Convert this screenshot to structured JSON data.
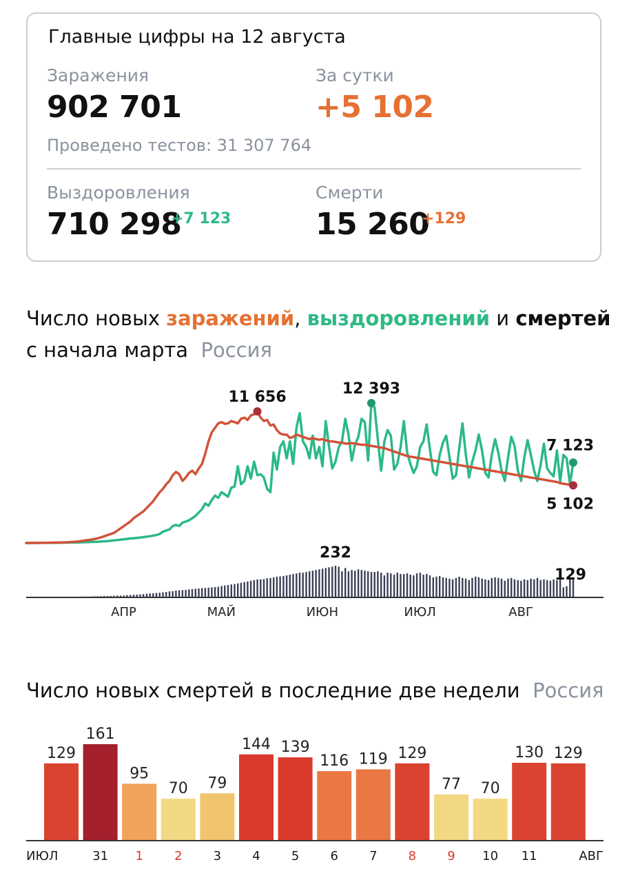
{
  "summary": {
    "title": "Главные цифры на 12 августа",
    "infections_label": "Заражения",
    "infections_value": "902 701",
    "daily_label": "За сутки",
    "daily_value": "+5 102",
    "tests_text": "Проведено тестов: 31 307 764",
    "recoveries_label": "Выздоровления",
    "recoveries_value": "710 298",
    "recoveries_delta": "+7 123",
    "deaths_label": "Смерти",
    "deaths_value": "15 260",
    "deaths_delta": "+129"
  },
  "chart1": {
    "title_part1": "Число новых ",
    "title_infections": "заражений",
    "title_comma": ", ",
    "title_recoveries": "выздоровлений",
    "title_and": " и ",
    "title_deaths": "смертей",
    "title_line2": "с начала марта",
    "region": "Россия"
  },
  "chart2": {
    "title": "Число новых смертей в последние две недели",
    "region": "Россия"
  },
  "colors": {
    "infections": "#d2523a",
    "infections_early": "#e8a456",
    "recoveries": "#2bb988",
    "recoveries_early": "#a9e0ee",
    "deaths_bars": "#3a3f55",
    "bar_dark": "#a3202c",
    "bar_red": "#d93a2b",
    "bar_orange": "#ea7845",
    "bar_light_orange": "#f0a35a",
    "bar_yellow": "#f3d883"
  },
  "chart_data": [
    {
      "type": "line",
      "x_range": [
        "2020-03-01",
        "2020-08-12"
      ],
      "months": [
        "АПР",
        "МАЙ",
        "ИЮН",
        "ИЮЛ",
        "АВГ"
      ],
      "ylim": [
        0,
        13000
      ],
      "series": [
        {
          "name": "заражений",
          "values": [
            2,
            3,
            5,
            7,
            10,
            15,
            20,
            25,
            30,
            35,
            40,
            50,
            60,
            70,
            90,
            110,
            140,
            180,
            220,
            260,
            300,
            350,
            420,
            500,
            600,
            700,
            800,
            900,
            1100,
            1300,
            1500,
            1700,
            1900,
            2200,
            2400,
            2600,
            2800,
            3100,
            3400,
            3700,
            4100,
            4500,
            4800,
            5200,
            5500,
            6000,
            6300,
            6100,
            5500,
            5800,
            6200,
            6400,
            6100,
            6600,
            7000,
            7900,
            9000,
            9800,
            10200,
            10600,
            10700,
            10550,
            10600,
            10800,
            10700,
            10600,
            11000,
            11100,
            10900,
            11300,
            11400,
            11656,
            11100,
            10800,
            10900,
            10400,
            10500,
            10000,
            9700,
            9600,
            9600,
            9300,
            9400,
            9600,
            9500,
            9400,
            9300,
            9200,
            9300,
            9200,
            9150,
            9200,
            9100,
            9000,
            9000,
            8950,
            8900,
            8900,
            8800,
            8800,
            8850,
            8800,
            8750,
            8700,
            8700,
            8650,
            8600,
            8550,
            8500,
            8450,
            8400,
            8300,
            8200,
            8100,
            8000,
            7900,
            7800,
            7700,
            7650,
            7600,
            7550,
            7500,
            7450,
            7400,
            7350,
            7300,
            7250,
            7200,
            7150,
            7100,
            7050,
            7000,
            6950,
            6900,
            6850,
            6800,
            6750,
            6700,
            6650,
            6600,
            6550,
            6500,
            6450,
            6400,
            6350,
            6300,
            6250,
            6200,
            6150,
            6100,
            6050,
            6000,
            5950,
            5900,
            5850,
            5800,
            5750,
            5700,
            5650,
            5600,
            5550,
            5500,
            5450,
            5400,
            5300,
            5250,
            5200,
            5150,
            5102
          ]
        },
        {
          "name": "выздоровлений",
          "values": [
            0,
            0,
            0,
            0,
            0,
            5,
            10,
            10,
            15,
            20,
            20,
            25,
            30,
            30,
            40,
            40,
            50,
            60,
            70,
            80,
            90,
            100,
            110,
            130,
            150,
            170,
            200,
            230,
            260,
            300,
            330,
            360,
            400,
            420,
            450,
            480,
            520,
            560,
            600,
            650,
            700,
            800,
            1000,
            1100,
            1200,
            1500,
            1600,
            1500,
            1800,
            1900,
            2000,
            2200,
            2400,
            2700,
            3000,
            3500,
            3300,
            3800,
            4200,
            4000,
            4500,
            4300,
            4100,
            4900,
            5000,
            6800,
            5200,
            5500,
            6800,
            5700,
            7200,
            6000,
            6100,
            5800,
            4800,
            4500,
            8000,
            6500,
            8500,
            9000,
            7500,
            9000,
            7000,
            10200,
            11500,
            9000,
            8500,
            7500,
            9500,
            7500,
            8500,
            6800,
            10800,
            8600,
            6600,
            7200,
            8500,
            9000,
            11000,
            9600,
            7300,
            8700,
            9400,
            11000,
            10700,
            7300,
            12393,
            12000,
            9200,
            6400,
            9000,
            10000,
            9500,
            6500,
            7000,
            8500,
            10800,
            8000,
            7000,
            6200,
            6800,
            8500,
            9000,
            10500,
            8300,
            6300,
            6000,
            7800,
            8900,
            9500,
            7600,
            5700,
            6000,
            8400,
            10600,
            7900,
            5800,
            7200,
            8200,
            9600,
            8200,
            6200,
            5800,
            7800,
            9200,
            8000,
            6400,
            5500,
            7600,
            9400,
            8600,
            6400,
            5500,
            7600,
            9100,
            7800,
            6400,
            5500,
            6900,
            8800,
            6600,
            6200,
            5900,
            8200,
            5400,
            7800,
            7500,
            5200,
            7123
          ]
        }
      ],
      "annotations": [
        {
          "label": "11 656",
          "series": "заражений"
        },
        {
          "label": "12 393",
          "series": "выздоровлений"
        },
        {
          "label": "7 123",
          "series": "выздоровлений"
        },
        {
          "label": "5 102",
          "series": "заражений"
        }
      ]
    },
    {
      "type": "bar",
      "series_name": "смертей",
      "ylim": [
        0,
        600
      ],
      "values": [
        0,
        0,
        0,
        0,
        0,
        0,
        0,
        0,
        0,
        0,
        0,
        0,
        0,
        0,
        0,
        0,
        0,
        1,
        1,
        1,
        2,
        3,
        3,
        4,
        5,
        5,
        6,
        7,
        8,
        9,
        9,
        12,
        13,
        15,
        16,
        18,
        20,
        22,
        24,
        26,
        28,
        30,
        33,
        36,
        40,
        42,
        46,
        48,
        50,
        51,
        55,
        58,
        60,
        62,
        64,
        66,
        68,
        70,
        72,
        75,
        80,
        84,
        88,
        92,
        95,
        100,
        104,
        110,
        114,
        120,
        125,
        130,
        130,
        132,
        138,
        140,
        145,
        150,
        152,
        155,
        160,
        165,
        170,
        175,
        180,
        180,
        185,
        190,
        195,
        200,
        205,
        210,
        215,
        220,
        225,
        232,
        225,
        190,
        215,
        190,
        200,
        195,
        205,
        200,
        195,
        190,
        185,
        185,
        190,
        180,
        160,
        180,
        175,
        165,
        180,
        170,
        170,
        175,
        165,
        160,
        175,
        180,
        165,
        170,
        160,
        145,
        150,
        155,
        145,
        140,
        135,
        130,
        140,
        150,
        140,
        135,
        125,
        140,
        150,
        145,
        135,
        130,
        125,
        140,
        145,
        140,
        135,
        120,
        135,
        140,
        130,
        125,
        120,
        130,
        125,
        135,
        130,
        140,
        125,
        130,
        125,
        120,
        130,
        125,
        130,
        70,
        79,
        144,
        129
      ],
      "annotations": [
        {
          "label": "232"
        },
        {
          "label": "129"
        }
      ]
    },
    {
      "type": "bar",
      "categories": [
        "ИЮЛ",
        "31",
        "1",
        "2",
        "3",
        "4",
        "5",
        "6",
        "7",
        "8",
        "9",
        "10",
        "11",
        "АВГ"
      ],
      "category_colors": [
        "#1a1a1a",
        "#1a1a1a",
        "#d93a2b",
        "#d93a2b",
        "#1a1a1a",
        "#1a1a1a",
        "#1a1a1a",
        "#1a1a1a",
        "#1a1a1a",
        "#d93a2b",
        "#d93a2b",
        "#1a1a1a",
        "#1a1a1a",
        "#1a1a1a"
      ],
      "values": [
        129,
        161,
        95,
        70,
        79,
        144,
        139,
        116,
        119,
        129,
        77,
        70,
        130,
        129
      ],
      "bar_colors": [
        "#d9432f",
        "#a3202c",
        "#f0a35a",
        "#f3d883",
        "#f1c46e",
        "#d93a2b",
        "#d93a2b",
        "#ea7845",
        "#ea7845",
        "#d9432f",
        "#f3d883",
        "#f3d883",
        "#d9432f",
        "#d9432f"
      ],
      "ylim": [
        0,
        161
      ]
    }
  ]
}
